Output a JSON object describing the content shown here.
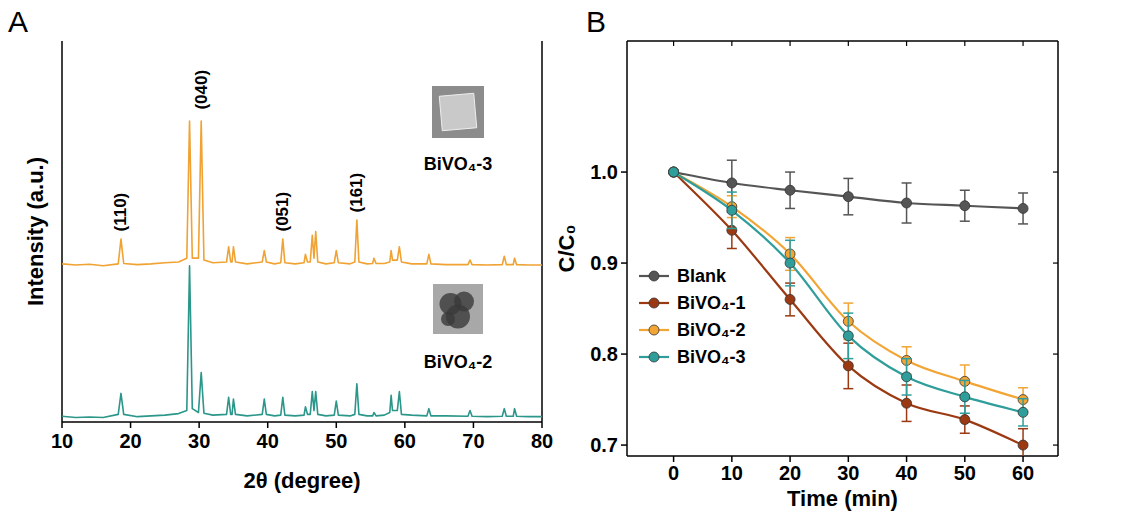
{
  "chart_data": [
    {
      "type": "line",
      "label": "A",
      "x_label": "2θ (degree)",
      "y_label": "Intensity (a.u.)",
      "x": [
        10,
        12,
        14,
        16,
        18.2,
        18.6,
        19.0,
        21,
        23,
        25,
        27,
        28.2,
        28.6,
        29.0,
        29.9,
        30.3,
        30.7,
        32,
        34.0,
        34.3,
        34.6,
        34.8,
        35.0,
        35.3,
        37,
        39.2,
        39.5,
        39.8,
        41,
        41.9,
        42.2,
        42.5,
        44,
        45.3,
        45.5,
        45.8,
        46.2,
        46.5,
        46.75,
        47.0,
        47.3,
        48.5,
        49.7,
        50.0,
        50.3,
        52,
        52.7,
        53.0,
        53.3,
        54.5,
        55.3,
        55.5,
        55.8,
        57,
        57.8,
        58.0,
        58.2,
        58.9,
        59.2,
        59.5,
        61,
        63.2,
        63.5,
        63.8,
        66,
        69.2,
        69.5,
        69.8,
        72,
        74.2,
        74.5,
        74.8,
        75.8,
        76.0,
        76.3,
        78,
        80
      ],
      "xlim": [
        10,
        80
      ],
      "xticks": [
        10,
        20,
        30,
        40,
        50,
        60,
        70,
        80
      ],
      "ylim": [
        0,
        100
      ],
      "tick_labels": "x",
      "grid": false,
      "series": [
        {
          "name": "BiVO₄-3",
          "color": "#F0A232",
          "values": [
            41.5,
            41.2,
            41.4,
            41.0,
            41.5,
            48,
            41.6,
            41.3,
            41.5,
            41.8,
            42.0,
            43,
            79,
            43,
            43,
            79,
            42.5,
            41.8,
            42,
            46,
            42,
            42,
            46,
            42,
            41.5,
            42,
            45,
            42,
            41.5,
            41.8,
            48,
            41.8,
            41.5,
            41.8,
            44,
            42,
            42,
            49,
            43,
            50,
            42,
            41.5,
            41.8,
            45,
            41.8,
            41.5,
            42,
            53,
            42,
            41.5,
            41.6,
            43,
            41.6,
            41.6,
            42,
            45,
            42.5,
            42.5,
            46,
            42,
            41.5,
            41.5,
            44,
            41.5,
            41.3,
            41.3,
            42.5,
            41.3,
            41.2,
            41.3,
            43.5,
            41.3,
            41.3,
            43,
            41.3,
            41.2,
            41.2
          ]
        },
        {
          "name": "BiVO₄-2",
          "color": "#2B968A",
          "values": [
            1.5,
            1.2,
            1.3,
            1.2,
            2,
            7.5,
            2,
            1.4,
            1.6,
            1.8,
            2.2,
            3,
            41,
            3.5,
            2.5,
            13,
            2.3,
            1.8,
            2,
            6.5,
            2,
            2,
            6,
            2,
            1.6,
            2,
            6,
            2,
            1.6,
            1.8,
            6.5,
            1.8,
            1.6,
            1.8,
            4,
            2,
            2,
            8,
            3,
            8,
            2,
            1.6,
            1.8,
            5.5,
            1.8,
            1.6,
            2,
            10,
            2,
            1.6,
            1.6,
            2.5,
            1.6,
            1.8,
            2.5,
            7,
            3,
            3,
            8,
            2,
            1.8,
            1.6,
            3.5,
            1.6,
            1.6,
            1.5,
            3,
            1.5,
            1.4,
            1.5,
            3.5,
            1.5,
            1.5,
            3.5,
            1.5,
            1.4,
            1.4
          ]
        }
      ],
      "annotations": [
        {
          "text": "(110)",
          "x": 18.6,
          "y": 50
        },
        {
          "text": "(040)",
          "x": 30.3,
          "y": 82
        },
        {
          "text": "(051)",
          "x": 42.2,
          "y": 50
        },
        {
          "text": "(161)",
          "x": 53.0,
          "y": 55
        }
      ]
    },
    {
      "type": "line",
      "label": "B",
      "x_label": "Time (min)",
      "y_label": "C/C₀",
      "x": [
        0,
        10,
        20,
        30,
        40,
        50,
        60
      ],
      "xlim": [
        -8,
        66
      ],
      "xticks": [
        0,
        10,
        20,
        30,
        40,
        50,
        60
      ],
      "ylim": [
        0.688,
        1.144
      ],
      "yticks": [
        0.7,
        0.8,
        0.9,
        {
          "value": 1,
          "label": "1.0"
        }
      ],
      "grid": false,
      "legend": "lower left",
      "marker": "circle",
      "series": [
        {
          "name": "Blank",
          "color": "#555555",
          "values": [
            1,
            0.988,
            0.98,
            0.973,
            0.966,
            0.963,
            0.96
          ],
          "errors": [
            0,
            0.025,
            0.02,
            0.02,
            0.022,
            0.017,
            0.017
          ]
        },
        {
          "name": "BiVO₄-1",
          "color": "#9B3A12",
          "values": [
            1,
            0.936,
            0.86,
            0.787,
            0.746,
            0.728,
            0.7
          ],
          "errors": [
            0,
            0.02,
            0.018,
            0.025,
            0.02,
            0.015,
            0.018
          ]
        },
        {
          "name": "BiVO₄-2",
          "color": "#F2A535",
          "values": [
            1,
            0.962,
            0.91,
            0.836,
            0.793,
            0.77,
            0.75
          ],
          "errors": [
            0,
            0.012,
            0.018,
            0.02,
            0.015,
            0.018,
            0.013
          ]
        },
        {
          "name": "BiVO₄-3",
          "color": "#2F9E9A",
          "values": [
            1,
            0.958,
            0.9,
            0.82,
            0.775,
            0.753,
            0.736
          ],
          "errors": [
            0,
            0.02,
            0.025,
            0.025,
            0.02,
            0.018,
            0.015
          ]
        }
      ]
    }
  ]
}
